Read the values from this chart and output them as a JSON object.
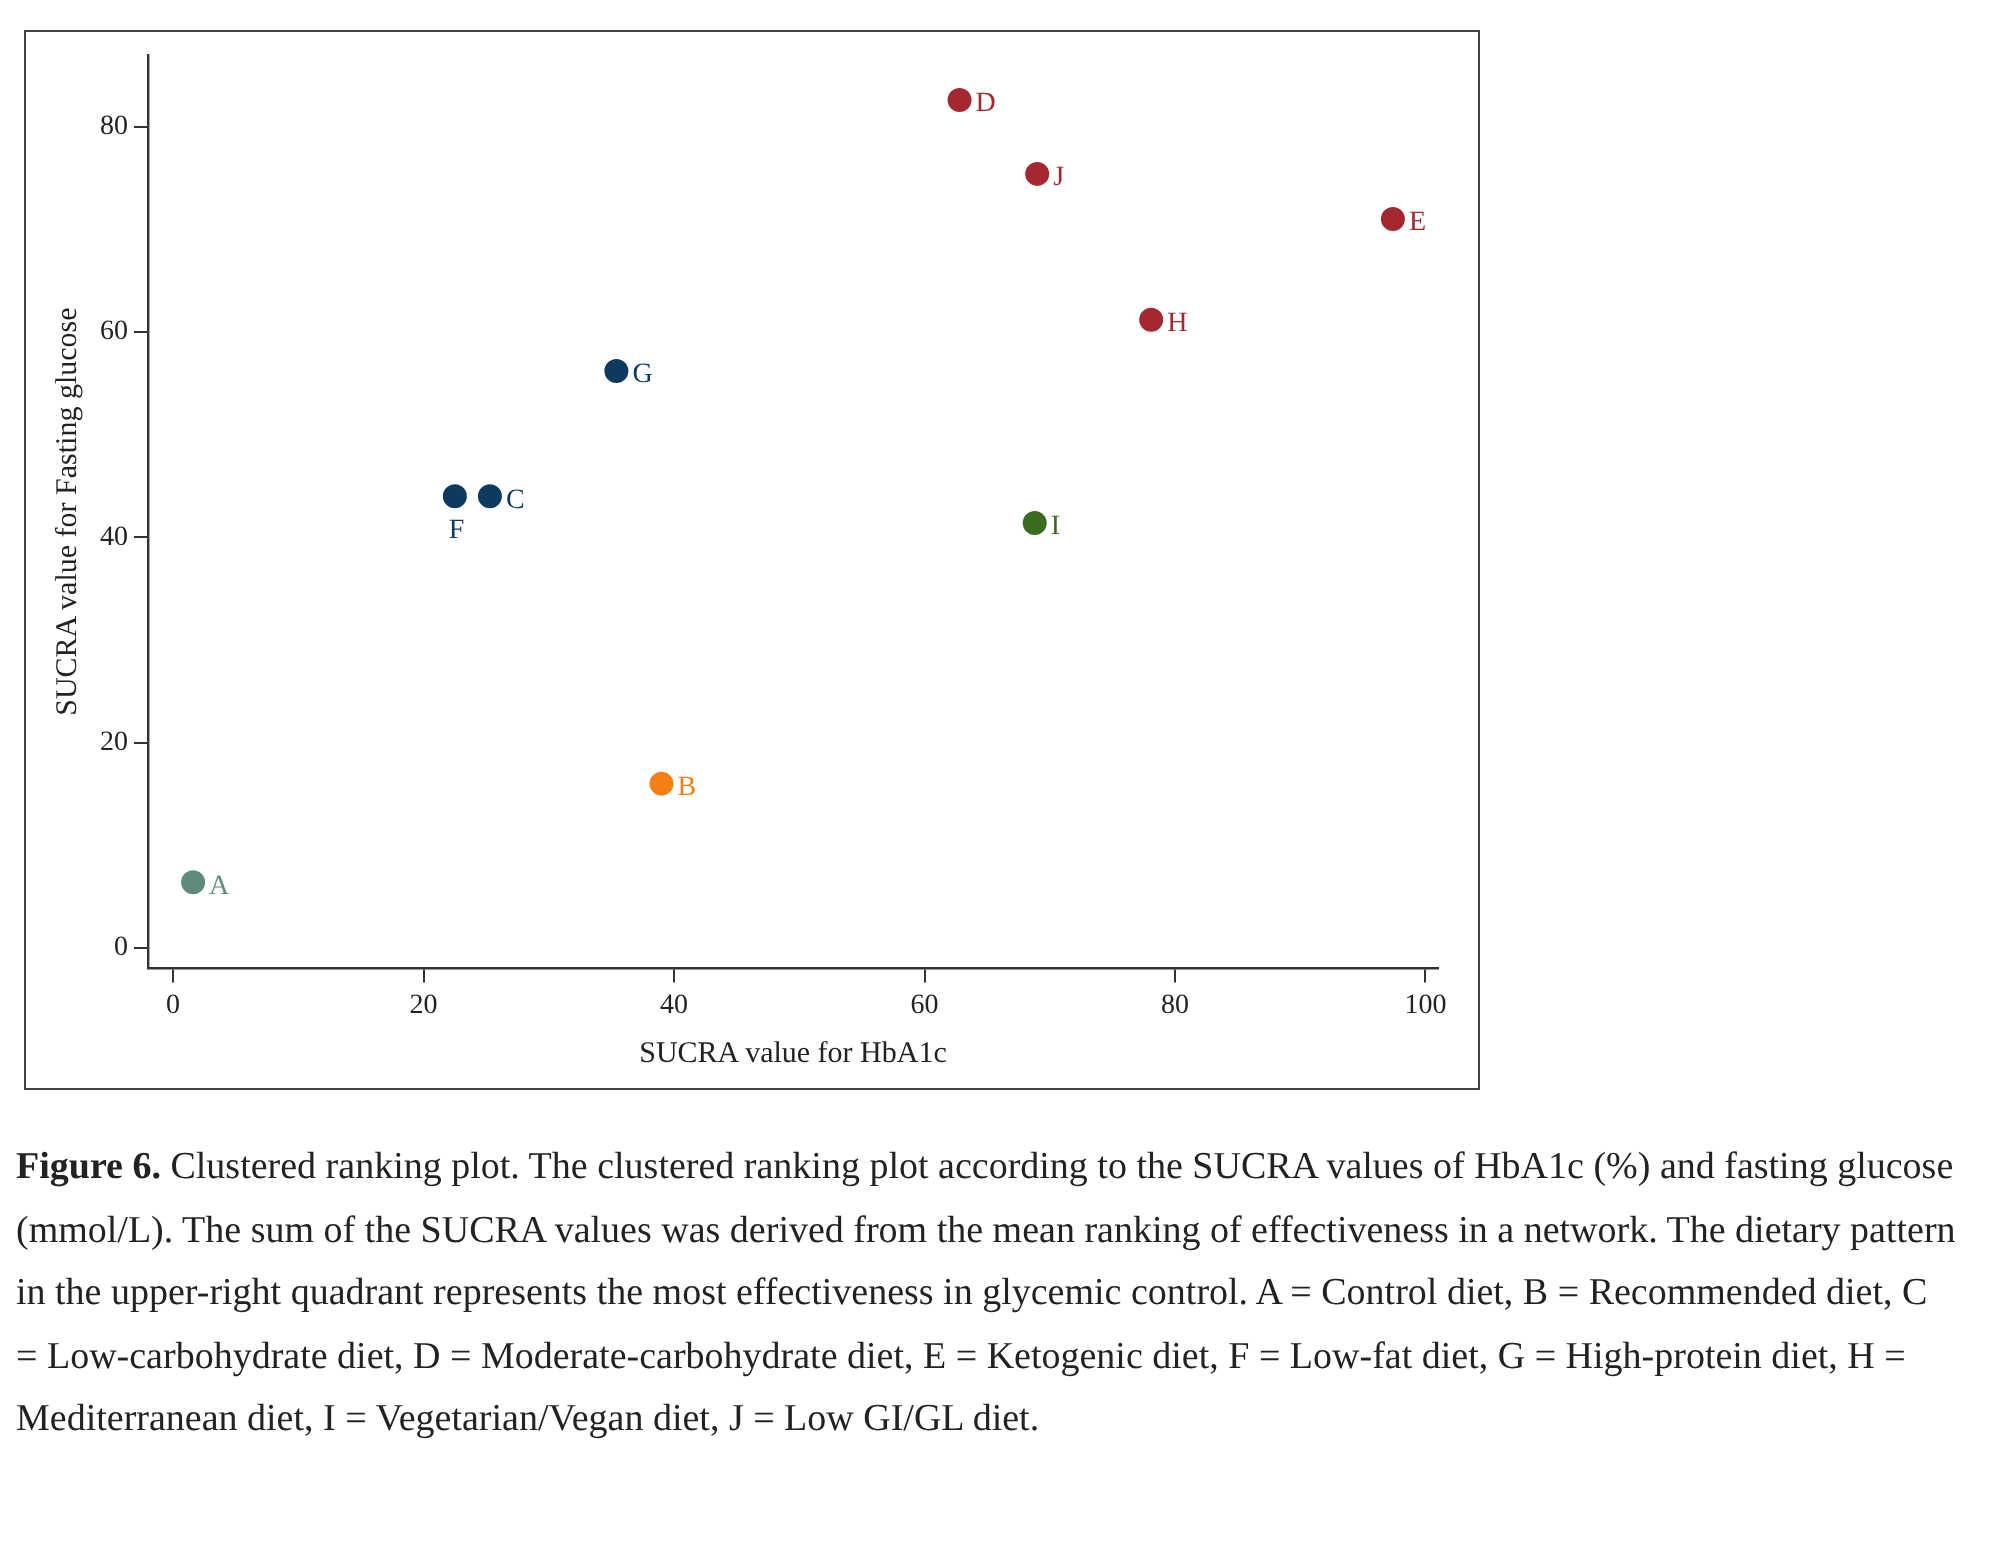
{
  "chart_data": {
    "type": "scatter",
    "xlabel": "SUCRA value for HbA1c",
    "ylabel": "SUCRA value for Fasting glucose",
    "xlim": [
      -2,
      101
    ],
    "ylim": [
      -2,
      87
    ],
    "xticks": [
      0,
      20,
      40,
      60,
      80,
      100
    ],
    "yticks": [
      0,
      20,
      40,
      60,
      80
    ],
    "grid": false,
    "legend": false,
    "marker": "circle",
    "series": [
      {
        "name": "A",
        "color": "#5e8c7c",
        "x": [
          1.6
        ],
        "values": [
          6.4
        ]
      },
      {
        "name": "B",
        "color": "#f57f17",
        "x": [
          39
        ],
        "values": [
          16
        ]
      },
      {
        "name": "C",
        "color": "#0d3b5e",
        "x": [
          25.3
        ],
        "values": [
          44
        ]
      },
      {
        "name": "D",
        "color": "#a3282f",
        "x": [
          62.8
        ],
        "values": [
          82.6
        ]
      },
      {
        "name": "E",
        "color": "#a3282f",
        "x": [
          97.4
        ],
        "values": [
          71
        ]
      },
      {
        "name": "F",
        "color": "#0d3b5e",
        "x": [
          22.5
        ],
        "values": [
          44
        ]
      },
      {
        "name": "G",
        "color": "#0d3b5e",
        "x": [
          35.4
        ],
        "values": [
          56.2
        ]
      },
      {
        "name": "H",
        "color": "#a3282f",
        "x": [
          78.1
        ],
        "values": [
          61.2
        ]
      },
      {
        "name": "I",
        "color": "#3a6b1f",
        "x": [
          68.8
        ],
        "values": [
          41.4
        ]
      },
      {
        "name": "J",
        "color": "#a3282f",
        "x": [
          69
        ],
        "values": [
          75.4
        ]
      }
    ],
    "annotations": [
      "Figure 6.",
      "Clustered ranking plot. The clustered ranking plot according to the SUCRA values of HbA1c (%) and fasting glucose (mmol/L). The sum of the SUCRA values was derived from the mean ranking of effectiveness in a network. The dietary pattern in the upper-right quadrant represents the most effectiveness in glycemic control. A = Control diet, B = Recommended diet, C = Low-carbohydrate diet, D = Moderate-carbohydrate diet, E = Ketogenic diet, F = Low-fat diet, G = High-protein diet, H = Mediterranean diet, I = Vegetarian/Vegan diet, J = Low GI/GL diet."
    ]
  }
}
